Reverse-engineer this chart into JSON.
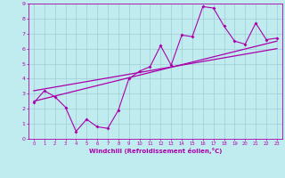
{
  "title": "",
  "xlabel": "Windchill (Refroidissement éolien,°C)",
  "ylabel": "",
  "bg_color": "#c0ecf0",
  "grid_color": "#a0ccd4",
  "line_color": "#aa00aa",
  "spine_color": "#aa00aa",
  "xlim": [
    -0.5,
    23.5
  ],
  "ylim": [
    0,
    9
  ],
  "xticks": [
    0,
    1,
    2,
    3,
    4,
    5,
    6,
    7,
    8,
    9,
    10,
    11,
    12,
    13,
    14,
    15,
    16,
    17,
    18,
    19,
    20,
    21,
    22,
    23
  ],
  "yticks": [
    0,
    1,
    2,
    3,
    4,
    5,
    6,
    7,
    8,
    9
  ],
  "data_x": [
    0,
    1,
    2,
    3,
    4,
    5,
    6,
    7,
    8,
    9,
    10,
    11,
    12,
    13,
    14,
    15,
    16,
    17,
    18,
    19,
    20,
    21,
    22,
    23
  ],
  "data_y": [
    2.4,
    3.2,
    2.8,
    2.1,
    0.5,
    1.3,
    0.8,
    0.7,
    1.9,
    4.0,
    4.5,
    4.8,
    6.2,
    4.9,
    6.9,
    6.8,
    8.8,
    8.7,
    7.5,
    6.5,
    6.3,
    7.7,
    6.6,
    6.7
  ],
  "line1_x": [
    0,
    23
  ],
  "line1_y": [
    2.5,
    6.5
  ],
  "line2_x": [
    0,
    23
  ],
  "line2_y": [
    3.2,
    6.0
  ]
}
